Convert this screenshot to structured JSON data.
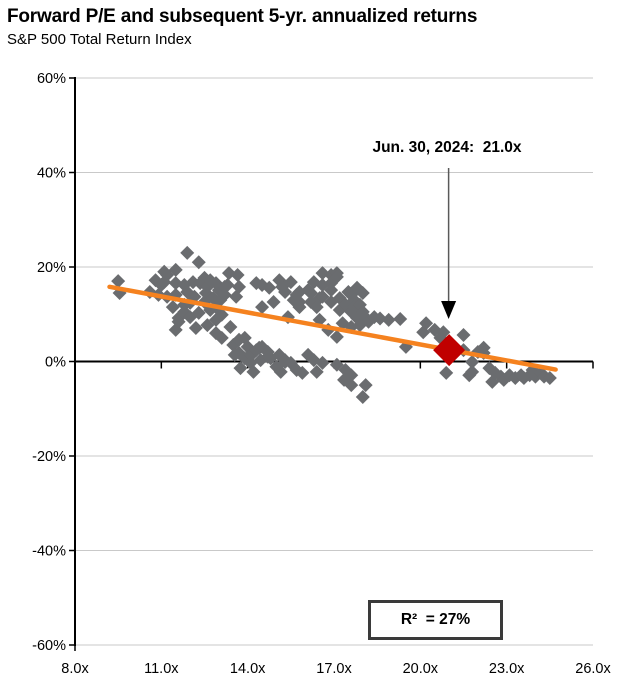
{
  "colors": {
    "scatter": "#6a6c6f",
    "trend": "#f5821f",
    "highlight": "#c00000",
    "gridline": "#c9c9c9",
    "axis": "#000000",
    "arrow_line": "#595959",
    "arrow_head": "#000000",
    "box_border": "#3a3a3a"
  },
  "chart_data": {
    "type": "scatter",
    "title": "Forward P/E and subsequent 5-yr. annualized returns",
    "subtitle": "S&P 500 Total Return Index",
    "xlabel": "",
    "ylabel": "",
    "xlim": [
      8,
      26
    ],
    "ylim": [
      -60,
      60
    ],
    "grid": "horizontal",
    "x_ticks": [
      8,
      11,
      14,
      17,
      20,
      23,
      26
    ],
    "x_tick_labels": [
      "8.0x",
      "11.0x",
      "14.0x",
      "17.0x",
      "20.0x",
      "23.0x",
      "26.0x"
    ],
    "y_ticks": [
      60,
      40,
      20,
      0,
      -20,
      -40,
      -60
    ],
    "y_tick_labels": [
      "60%",
      "40%",
      "20%",
      "0%",
      "-20%",
      "-40%",
      "-60%"
    ],
    "annotation": {
      "label": "Jun. 30, 2024:  21.0x",
      "points_to_x": 21.0
    },
    "r_squared_label": "R²  = 27%",
    "r_squared": "27%",
    "highlight_point": {
      "x": 21.0,
      "y": 2.4
    },
    "trend_line": {
      "x1": 9.2,
      "y1": 15.8,
      "x2": 24.7,
      "y2": -1.7
    },
    "points": [
      [
        9.5,
        17
      ],
      [
        9.55,
        14.5
      ],
      [
        10.6,
        14.7
      ],
      [
        10.8,
        17.2
      ],
      [
        10.9,
        14.1
      ],
      [
        11.0,
        16.2
      ],
      [
        11.1,
        19.0
      ],
      [
        11.1,
        16.8
      ],
      [
        11.2,
        18.3
      ],
      [
        11.2,
        13.7
      ],
      [
        11.4,
        11.5
      ],
      [
        11.5,
        19.4
      ],
      [
        11.5,
        16.6
      ],
      [
        11.5,
        14.1
      ],
      [
        11.5,
        6.7
      ],
      [
        11.6,
        9.2
      ],
      [
        11.6,
        8.4
      ],
      [
        11.8,
        16.2
      ],
      [
        11.8,
        12.0
      ],
      [
        11.8,
        10.5
      ],
      [
        11.9,
        23.0
      ],
      [
        11.9,
        14.7
      ],
      [
        12.0,
        12.4
      ],
      [
        12.0,
        9.4
      ],
      [
        12.1,
        16.8
      ],
      [
        12.15,
        13.7
      ],
      [
        12.2,
        7.1
      ],
      [
        12.3,
        21.0
      ],
      [
        12.35,
        16.6
      ],
      [
        12.3,
        10.3
      ],
      [
        12.5,
        17.7
      ],
      [
        12.5,
        12.6
      ],
      [
        12.55,
        14.5
      ],
      [
        12.6,
        15.8
      ],
      [
        12.6,
        7.7
      ],
      [
        12.7,
        17.2
      ],
      [
        12.7,
        10.9
      ],
      [
        12.8,
        13.4
      ],
      [
        12.9,
        16.6
      ],
      [
        12.9,
        11.5
      ],
      [
        12.9,
        8.8
      ],
      [
        12.9,
        6.0
      ],
      [
        13.0,
        15.1
      ],
      [
        13.05,
        13.0
      ],
      [
        13.1,
        9.9
      ],
      [
        13.1,
        5.0
      ],
      [
        13.2,
        15.8
      ],
      [
        13.2,
        14.1
      ],
      [
        13.3,
        16.2
      ],
      [
        13.35,
        18.7
      ],
      [
        13.4,
        7.3
      ],
      [
        13.5,
        3.5
      ],
      [
        13.55,
        1.4
      ],
      [
        13.6,
        13.7
      ],
      [
        13.65,
        18.3
      ],
      [
        13.7,
        4.6
      ],
      [
        13.7,
        1.8
      ],
      [
        13.7,
        15.8
      ],
      [
        13.75,
        -1.4
      ],
      [
        13.9,
        5.0
      ],
      [
        13.9,
        0.7
      ],
      [
        14.0,
        3.1
      ],
      [
        14.1,
        1.4
      ],
      [
        14.1,
        -0.3
      ],
      [
        14.2,
        -2.2
      ],
      [
        14.2,
        1.8
      ],
      [
        14.3,
        16.6
      ],
      [
        14.3,
        2.4
      ],
      [
        14.4,
        2.9
      ],
      [
        14.45,
        0.3
      ],
      [
        14.5,
        16.2
      ],
      [
        14.5,
        11.5
      ],
      [
        14.5,
        3.1
      ],
      [
        14.7,
        2.0
      ],
      [
        14.7,
        1.0
      ],
      [
        14.75,
        15.6
      ],
      [
        14.8,
        0.7
      ],
      [
        14.9,
        12.6
      ],
      [
        15.0,
        -1.1
      ],
      [
        15.1,
        17.2
      ],
      [
        15.1,
        1.4
      ],
      [
        15.15,
        -2.2
      ],
      [
        15.2,
        15.8
      ],
      [
        15.3,
        14.7
      ],
      [
        15.3,
        0.3
      ],
      [
        15.3,
        -0.1
      ],
      [
        15.4,
        9.4
      ],
      [
        15.5,
        16.8
      ],
      [
        15.5,
        -0.3
      ],
      [
        15.6,
        13.0
      ],
      [
        15.7,
        14.1
      ],
      [
        15.7,
        -1.8
      ],
      [
        15.8,
        14.7
      ],
      [
        15.8,
        12.6
      ],
      [
        15.8,
        11.5
      ],
      [
        15.9,
        -2.4
      ],
      [
        16.1,
        15.1
      ],
      [
        16.1,
        1.4
      ],
      [
        16.2,
        14.5
      ],
      [
        16.2,
        12.6
      ],
      [
        16.3,
        16.8
      ],
      [
        16.3,
        0.3
      ],
      [
        16.4,
        11.5
      ],
      [
        16.4,
        -2.2
      ],
      [
        16.5,
        13.4
      ],
      [
        16.5,
        8.8
      ],
      [
        16.6,
        18.7
      ],
      [
        16.6,
        16.2
      ],
      [
        16.6,
        13.7
      ],
      [
        16.6,
        -0.3
      ],
      [
        16.8,
        6.7
      ],
      [
        16.9,
        18.3
      ],
      [
        16.9,
        16.6
      ],
      [
        16.9,
        15.1
      ],
      [
        16.9,
        12.6
      ],
      [
        17.1,
        18.7
      ],
      [
        17.1,
        17.9
      ],
      [
        17.1,
        5.2
      ],
      [
        17.1,
        -0.7
      ],
      [
        17.2,
        13.4
      ],
      [
        17.2,
        10.9
      ],
      [
        17.3,
        8.1
      ],
      [
        17.35,
        -3.9
      ],
      [
        17.4,
        12.0
      ],
      [
        17.4,
        -1.8
      ],
      [
        17.5,
        14.7
      ],
      [
        17.6,
        14.1
      ],
      [
        17.6,
        10.5
      ],
      [
        17.6,
        7.3
      ],
      [
        17.6,
        -2.9
      ],
      [
        17.6,
        -5.0
      ],
      [
        17.7,
        13.0
      ],
      [
        17.7,
        11.5
      ],
      [
        17.8,
        15.6
      ],
      [
        17.8,
        9.2
      ],
      [
        17.9,
        12.0
      ],
      [
        17.9,
        7.7
      ],
      [
        18.0,
        14.5
      ],
      [
        18.0,
        10.5
      ],
      [
        18.0,
        9.9
      ],
      [
        18.0,
        -7.5
      ],
      [
        18.1,
        -5.0
      ],
      [
        18.2,
        8.4
      ],
      [
        18.4,
        9.4
      ],
      [
        18.6,
        9.1
      ],
      [
        18.9,
        8.8
      ],
      [
        19.3,
        9.0
      ],
      [
        19.5,
        3.1
      ],
      [
        20.1,
        6.2
      ],
      [
        20.2,
        8.1
      ],
      [
        20.5,
        6.7
      ],
      [
        20.7,
        5.0
      ],
      [
        20.8,
        6.2
      ],
      [
        20.9,
        -2.4
      ],
      [
        21.5,
        5.6
      ],
      [
        21.5,
        2.4
      ],
      [
        21.7,
        -2.9
      ],
      [
        21.8,
        -0.1
      ],
      [
        21.8,
        -2.2
      ],
      [
        22.0,
        2.0
      ],
      [
        22.2,
        2.9
      ],
      [
        22.2,
        1.8
      ],
      [
        22.4,
        -1.4
      ],
      [
        22.5,
        -4.3
      ],
      [
        22.6,
        -2.4
      ],
      [
        22.8,
        -3.2
      ],
      [
        22.9,
        -3.9
      ],
      [
        23.1,
        -2.9
      ],
      [
        23.3,
        -3.5
      ],
      [
        23.5,
        -2.9
      ],
      [
        23.6,
        -3.5
      ],
      [
        23.8,
        -2.9
      ],
      [
        23.9,
        -1.8
      ],
      [
        24.0,
        -3.2
      ],
      [
        24.2,
        -2.4
      ],
      [
        24.3,
        -3.2
      ],
      [
        24.5,
        -3.5
      ]
    ]
  }
}
